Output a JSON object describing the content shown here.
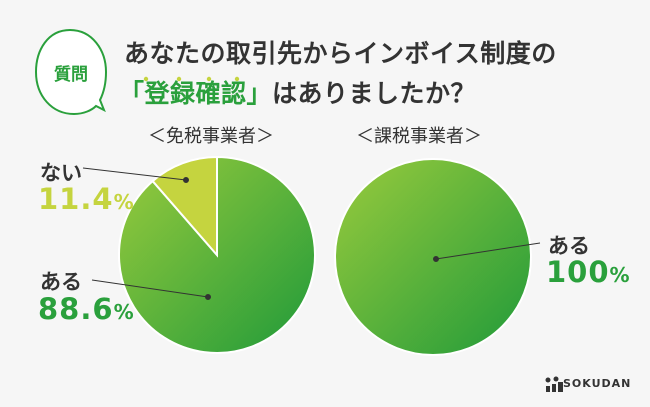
{
  "question_badge": "質問",
  "title": {
    "line1": "あなたの取引先からインボイス制度の",
    "open_bracket": "「",
    "highlight": "登録確認",
    "close_bracket": "」",
    "line2_rest": "はありましたか？"
  },
  "brand": "SOKUDAN",
  "colors": {
    "accent_green": "#2aa03c",
    "yellow": "#c5d43f",
    "pie_light": "#8cc63f",
    "pie_dark": "#1f9a3a"
  },
  "chart_data": [
    {
      "type": "pie",
      "title": "＜免税事業者＞",
      "slices": [
        {
          "label": "ある",
          "value": 88.6,
          "display": "88.6",
          "unit": "%"
        },
        {
          "label": "ない",
          "value": 11.4,
          "display": "11.4",
          "unit": "%"
        }
      ]
    },
    {
      "type": "pie",
      "title": "＜課税事業者＞",
      "slices": [
        {
          "label": "ある",
          "value": 100,
          "display": "100",
          "unit": "%"
        }
      ]
    }
  ]
}
